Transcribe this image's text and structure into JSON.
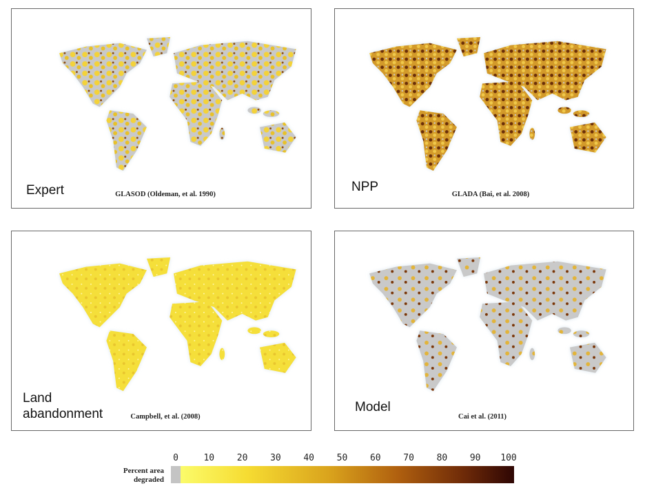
{
  "panels": [
    {
      "label": [
        "Expert"
      ],
      "source": "GLASOD (Oldeman, et al. 1990)"
    },
    {
      "label": [
        "NPP"
      ],
      "source": "GLADA (Bai, et al. 2008)"
    },
    {
      "label": [
        "Land",
        "abandonment"
      ],
      "source": "Campbell, et al. (2008)"
    },
    {
      "label": [
        "Model"
      ],
      "source": "Cai et al. (2011)"
    }
  ],
  "legend": {
    "title": [
      "Percent area",
      "degraded"
    ],
    "ticks": [
      0,
      10,
      20,
      30,
      40,
      50,
      60,
      70,
      80,
      90,
      100
    ]
  }
}
